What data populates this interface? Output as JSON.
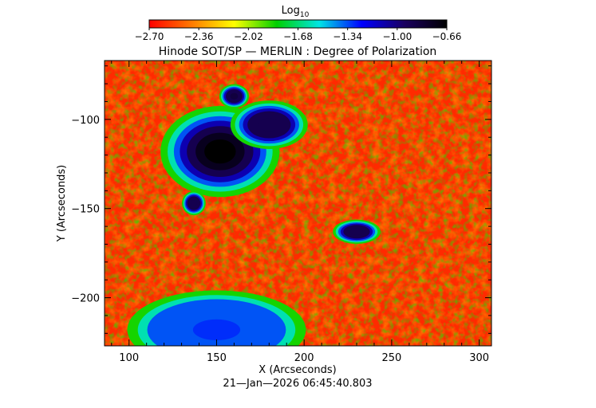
{
  "chart_data": {
    "type": "heatmap",
    "title": "Hinode SOT/SP — MERLIN : Degree of Polarization",
    "xlabel": "X (Arcseconds)",
    "ylabel": "Y (Arcseconds)",
    "timestamp": "21—Jan—2026 06:45:40.803",
    "colorbar": {
      "label_main": "Log",
      "label_sub": "10",
      "ticks": [
        "−2.70",
        "−2.36",
        "−2.02",
        "−1.68",
        "−1.34",
        "−1.00",
        "−0.66"
      ],
      "range": [
        -2.7,
        -0.66
      ],
      "colormap": [
        "#ff0000",
        "#ff7a00",
        "#ffff00",
        "#00d000",
        "#00e5e5",
        "#0000ff",
        "#1a0060",
        "#000000"
      ]
    },
    "xlim": [
      86,
      307
    ],
    "ylim": [
      -227,
      -67
    ],
    "xticks": [
      {
        "value": 100,
        "label": "100"
      },
      {
        "value": 150,
        "label": "150"
      },
      {
        "value": 200,
        "label": "200"
      },
      {
        "value": 250,
        "label": "250"
      },
      {
        "value": 300,
        "label": "300"
      }
    ],
    "yticks": [
      {
        "value": -100,
        "label": "−100"
      },
      {
        "value": -150,
        "label": "−150"
      },
      {
        "value": -200,
        "label": "−200"
      }
    ],
    "background_level": -2.3,
    "features": [
      {
        "name": "sunspot-main",
        "x": 152,
        "y": -118,
        "rx": 20,
        "ry": 15,
        "peak": -0.66
      },
      {
        "name": "pore-upper-left",
        "x": 160,
        "y": -87,
        "rx": 5,
        "ry": 4,
        "peak": -0.85
      },
      {
        "name": "pore-upper-right",
        "x": 180,
        "y": -103,
        "rx": 13,
        "ry": 8,
        "peak": -0.9
      },
      {
        "name": "pore-small-left",
        "x": 137,
        "y": -147,
        "rx": 4,
        "ry": 4,
        "peak": -0.9
      },
      {
        "name": "pore-right",
        "x": 230,
        "y": -163,
        "rx": 8,
        "ry": 4,
        "peak": -0.9
      },
      {
        "name": "plage-bottom-left",
        "x": 150,
        "y": -218,
        "rx": 30,
        "ry": 13,
        "peak": -1.3
      }
    ]
  }
}
